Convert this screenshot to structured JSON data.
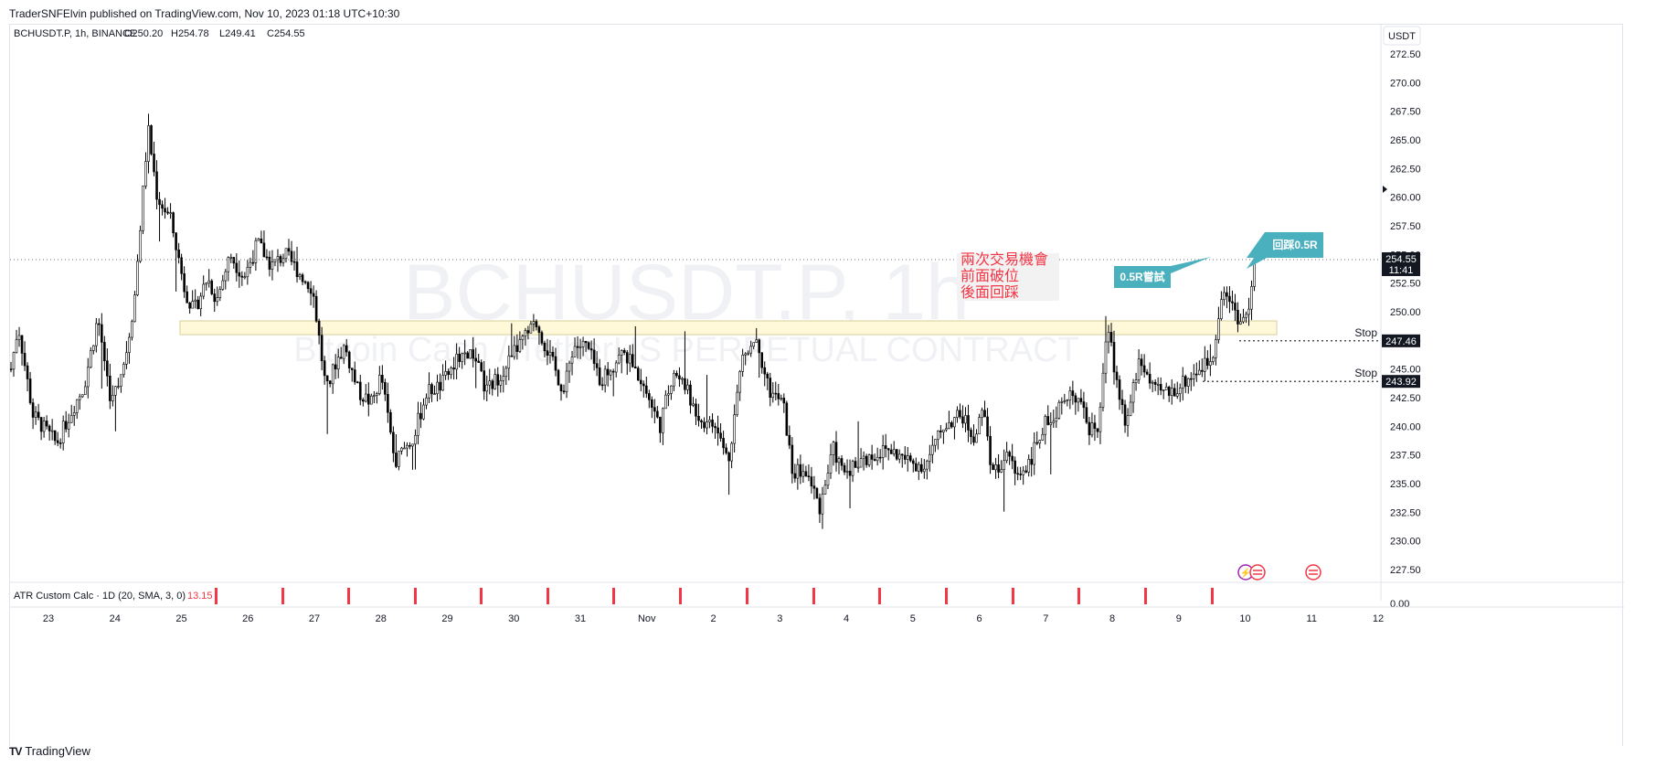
{
  "publisher": "TraderSNFElvin published on TradingView.com, Nov 10, 2023 01:18 UTC+10:30",
  "footer": {
    "logo": "TV",
    "brand": "TradingView"
  },
  "symbol_bar": {
    "symbol": "BCHUSDT.P, 1h, BINANCE",
    "open": "O250.20",
    "high": "H254.78",
    "low": "L249.41",
    "close": "C254.55"
  },
  "watermark": {
    "line1": "BCHUSDT.P, 1h",
    "line2": "Bitcoin Cash / TetherUS PERPETUAL CONTRACT"
  },
  "currency": "USDT",
  "colors": {
    "candle": "#000000",
    "zone_fill": "#fff9d9",
    "zone_stroke": "#d9cf9a",
    "callout": "#4bb0bd",
    "red_text": "#f23645",
    "price_tag": "#131722",
    "atr_marker": "#f23645"
  },
  "chart_data": {
    "type": "candlestick",
    "y_axis": {
      "ylim": [
        226.0,
        274.0
      ],
      "ticks": [
        "272.50",
        "270.00",
        "267.50",
        "265.00",
        "262.50",
        "260.00",
        "257.50",
        "255.00",
        "252.50",
        "250.00",
        "247.50",
        "245.00",
        "242.50",
        "240.00",
        "237.50",
        "235.00",
        "232.50",
        "230.00",
        "227.50"
      ]
    },
    "x_axis": {
      "ticks": [
        "23",
        "24",
        "25",
        "26",
        "27",
        "28",
        "29",
        "30",
        "31",
        "Nov",
        "2",
        "3",
        "4",
        "5",
        "6",
        "7",
        "8",
        "9",
        "10",
        "11",
        "12"
      ]
    },
    "current_price": {
      "value": "254.55",
      "countdown": "11:41"
    },
    "stops": [
      {
        "label": "Stop",
        "value": 247.46,
        "value_label": "247.46"
      },
      {
        "label": "Stop",
        "value": 243.92,
        "value_label": "243.92"
      }
    ],
    "zone": {
      "low": 248.0,
      "high": 249.2
    },
    "annotations": {
      "red_note": [
        "兩次交易機會",
        "前面破位",
        "後面回踩"
      ],
      "callout_left": "0.5R嘗試",
      "callout_right": "回踩0.5R"
    },
    "waypoints": [
      [
        0,
        245
      ],
      [
        8,
        248.8
      ],
      [
        24,
        241
      ],
      [
        50,
        238.5
      ],
      [
        70,
        242
      ],
      [
        80,
        243.5
      ],
      [
        95,
        249.5
      ],
      [
        110,
        242
      ],
      [
        125,
        246
      ],
      [
        135,
        251
      ],
      [
        150,
        266
      ],
      [
        160,
        260
      ],
      [
        175,
        258
      ],
      [
        190,
        252
      ],
      [
        200,
        250
      ],
      [
        215,
        253
      ],
      [
        225,
        251
      ],
      [
        240,
        255
      ],
      [
        255,
        253
      ],
      [
        270,
        256
      ],
      [
        285,
        254
      ],
      [
        300,
        255
      ],
      [
        320,
        253
      ],
      [
        330,
        252
      ],
      [
        345,
        243
      ],
      [
        355,
        245.5
      ],
      [
        365,
        247
      ],
      [
        380,
        243
      ],
      [
        395,
        242
      ],
      [
        405,
        244.5
      ],
      [
        420,
        237
      ],
      [
        440,
        239
      ],
      [
        455,
        243
      ],
      [
        470,
        243.5
      ],
      [
        490,
        246
      ],
      [
        505,
        246.5
      ],
      [
        520,
        243
      ],
      [
        535,
        244.5
      ],
      [
        555,
        247
      ],
      [
        575,
        249
      ],
      [
        590,
        246
      ],
      [
        605,
        243
      ],
      [
        615,
        247
      ],
      [
        630,
        247
      ],
      [
        645,
        244
      ],
      [
        660,
        245.5
      ],
      [
        670,
        246.5
      ],
      [
        690,
        244
      ],
      [
        710,
        240
      ],
      [
        725,
        245
      ],
      [
        740,
        243
      ],
      [
        755,
        240.5
      ],
      [
        770,
        240
      ],
      [
        785,
        237
      ],
      [
        800,
        246
      ],
      [
        815,
        248
      ],
      [
        830,
        243
      ],
      [
        845,
        242
      ],
      [
        855,
        236
      ],
      [
        870,
        236
      ],
      [
        885,
        233
      ],
      [
        900,
        238
      ],
      [
        910,
        236
      ],
      [
        930,
        237
      ],
      [
        960,
        238
      ],
      [
        980,
        237
      ],
      [
        1000,
        236.5
      ],
      [
        1020,
        240
      ],
      [
        1040,
        241
      ],
      [
        1055,
        239
      ],
      [
        1065,
        242
      ],
      [
        1070,
        237
      ],
      [
        1080,
        236
      ],
      [
        1090,
        238
      ],
      [
        1100,
        235.5
      ],
      [
        1115,
        237
      ],
      [
        1130,
        240
      ],
      [
        1150,
        242
      ],
      [
        1170,
        243
      ],
      [
        1180,
        239.5
      ],
      [
        1190,
        240
      ],
      [
        1200,
        248.5
      ],
      [
        1210,
        244
      ],
      [
        1220,
        240
      ],
      [
        1235,
        246
      ],
      [
        1250,
        243
      ],
      [
        1270,
        243
      ],
      [
        1285,
        244
      ],
      [
        1300,
        245
      ],
      [
        1315,
        246
      ],
      [
        1325,
        252
      ],
      [
        1335,
        251
      ],
      [
        1345,
        249
      ],
      [
        1355,
        250.2
      ],
      [
        1361,
        254.55
      ]
    ]
  },
  "indicator": {
    "label": "ATR Custom Calc · 1D (20, SMA, 3, 0)",
    "value": "13.15",
    "axis_label": "0.00",
    "markers": [
      225,
      298,
      370,
      443,
      515,
      588,
      660,
      733,
      806,
      879,
      951,
      1024,
      1097,
      1169,
      1242,
      1315
    ]
  }
}
